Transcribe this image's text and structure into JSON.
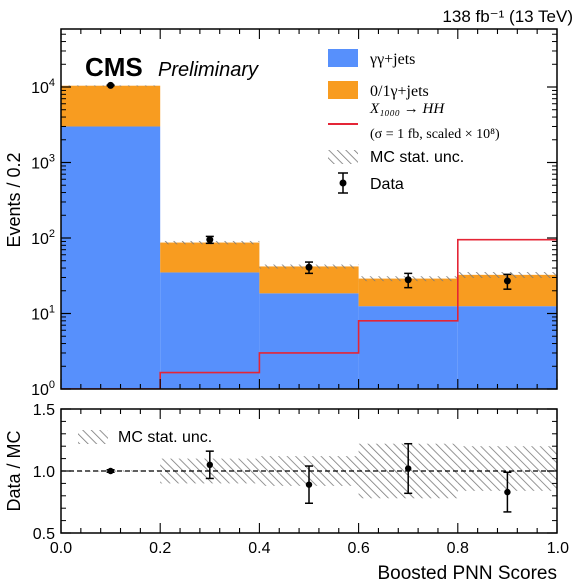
{
  "chart_data": [
    {
      "type": "bar",
      "subtype": "stacked-histogram",
      "x_edges": [
        0.0,
        0.2,
        0.4,
        0.6,
        0.8,
        1.0
      ],
      "xlim": [
        0.0,
        1.0
      ],
      "ylim": [
        1,
        50000
      ],
      "yscale": "log",
      "ylabel": "Events / 0.2",
      "lumi_label": "138 fb⁻¹ (13 TeV)",
      "experiment_label": "CMS",
      "status_label": "Preliminary",
      "y_ticks": [
        {
          "value": 1,
          "base": "10",
          "exp": "0"
        },
        {
          "value": 10,
          "base": "10",
          "exp": "1"
        },
        {
          "value": 100,
          "base": "10",
          "exp": "2"
        },
        {
          "value": 1000,
          "base": "10",
          "exp": "3"
        },
        {
          "value": 10000,
          "base": "10",
          "exp": "4"
        }
      ],
      "series": [
        {
          "name": "γγ+jets",
          "color": "#5790fc",
          "values": [
            3000,
            35,
            18.5,
            12.5,
            12.5
          ]
        },
        {
          "name": "0/1γ+jets",
          "color": "#f89c20",
          "values": [
            7400,
            52,
            23.5,
            16.5,
            20
          ]
        }
      ],
      "mc_unc": {
        "name": "MC stat. unc.",
        "rel_width": [
          0.02,
          0.1,
          0.12,
          0.15,
          0.18
        ]
      },
      "signal": {
        "name": "X₁₀₀₀ → HH",
        "note": "(σ = 1 fb,  scaled × 10⁸)",
        "color": "#e42536",
        "values": [
          1.0,
          1.65,
          3.0,
          8.0,
          95
        ]
      },
      "data_points": {
        "name": "Data",
        "x": [
          0.1,
          0.3,
          0.5,
          0.7,
          0.9
        ],
        "y": [
          10500,
          95,
          41,
          28,
          27
        ],
        "err": [
          100,
          10,
          7,
          6,
          6
        ]
      },
      "legend_position": "top-right"
    },
    {
      "type": "scatter",
      "subtype": "ratio",
      "xlabel": "Boosted PNN Scores",
      "ylabel": "Data / MC",
      "xlim": [
        0.0,
        1.0
      ],
      "ylim": [
        0.5,
        1.5
      ],
      "x_ticks": [
        "0.0",
        "0.2",
        "0.4",
        "0.6",
        "0.8",
        "1.0"
      ],
      "y_ticks": [
        "0.5",
        "1.0",
        "1.5"
      ],
      "reference_line": 1.0,
      "unc_label": "MC stat. unc.",
      "unc_band": [
        {
          "x0": 0.0,
          "x1": 0.2,
          "low": 0.995,
          "high": 1.005
        },
        {
          "x0": 0.2,
          "x1": 0.4,
          "low": 0.9,
          "high": 1.1
        },
        {
          "x0": 0.4,
          "x1": 0.6,
          "low": 0.88,
          "high": 1.12
        },
        {
          "x0": 0.6,
          "x1": 0.8,
          "low": 0.78,
          "high": 1.22
        },
        {
          "x0": 0.8,
          "x1": 1.0,
          "low": 0.84,
          "high": 1.2
        }
      ],
      "points": {
        "x": [
          0.1,
          0.3,
          0.5,
          0.7,
          0.9
        ],
        "y": [
          1.0,
          1.05,
          0.89,
          1.02,
          0.83
        ],
        "err": [
          0.01,
          0.11,
          0.15,
          0.2,
          0.16
        ]
      }
    }
  ]
}
